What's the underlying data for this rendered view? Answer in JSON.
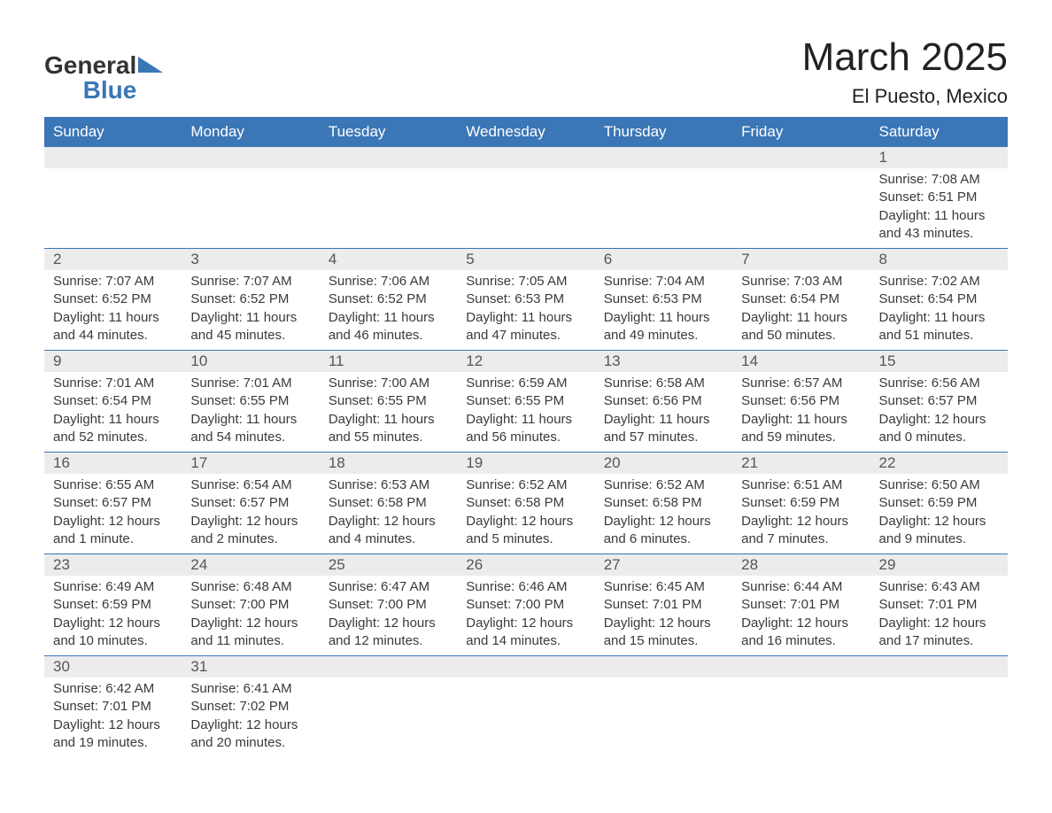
{
  "brand": {
    "line1": "General",
    "line2": "Blue"
  },
  "title": "March 2025",
  "location": "El Puesto, Mexico",
  "colors": {
    "header_bg": "#3b76b6",
    "header_text": "#ffffff",
    "daynum_bg": "#ececec",
    "body_text": "#3a3a3a",
    "border": "#3b76b6",
    "page_bg": "#ffffff"
  },
  "typography": {
    "title_fontsize": 44,
    "location_fontsize": 22,
    "header_cell_fontsize": 17,
    "daynum_fontsize": 17,
    "body_fontsize": 15
  },
  "weekdays": [
    "Sunday",
    "Monday",
    "Tuesday",
    "Wednesday",
    "Thursday",
    "Friday",
    "Saturday"
  ],
  "weeks": [
    [
      null,
      null,
      null,
      null,
      null,
      null,
      {
        "n": "1",
        "sunrise": "Sunrise: 7:08 AM",
        "sunset": "Sunset: 6:51 PM",
        "daylight": "Daylight: 11 hours and 43 minutes."
      }
    ],
    [
      {
        "n": "2",
        "sunrise": "Sunrise: 7:07 AM",
        "sunset": "Sunset: 6:52 PM",
        "daylight": "Daylight: 11 hours and 44 minutes."
      },
      {
        "n": "3",
        "sunrise": "Sunrise: 7:07 AM",
        "sunset": "Sunset: 6:52 PM",
        "daylight": "Daylight: 11 hours and 45 minutes."
      },
      {
        "n": "4",
        "sunrise": "Sunrise: 7:06 AM",
        "sunset": "Sunset: 6:52 PM",
        "daylight": "Daylight: 11 hours and 46 minutes."
      },
      {
        "n": "5",
        "sunrise": "Sunrise: 7:05 AM",
        "sunset": "Sunset: 6:53 PM",
        "daylight": "Daylight: 11 hours and 47 minutes."
      },
      {
        "n": "6",
        "sunrise": "Sunrise: 7:04 AM",
        "sunset": "Sunset: 6:53 PM",
        "daylight": "Daylight: 11 hours and 49 minutes."
      },
      {
        "n": "7",
        "sunrise": "Sunrise: 7:03 AM",
        "sunset": "Sunset: 6:54 PM",
        "daylight": "Daylight: 11 hours and 50 minutes."
      },
      {
        "n": "8",
        "sunrise": "Sunrise: 7:02 AM",
        "sunset": "Sunset: 6:54 PM",
        "daylight": "Daylight: 11 hours and 51 minutes."
      }
    ],
    [
      {
        "n": "9",
        "sunrise": "Sunrise: 7:01 AM",
        "sunset": "Sunset: 6:54 PM",
        "daylight": "Daylight: 11 hours and 52 minutes."
      },
      {
        "n": "10",
        "sunrise": "Sunrise: 7:01 AM",
        "sunset": "Sunset: 6:55 PM",
        "daylight": "Daylight: 11 hours and 54 minutes."
      },
      {
        "n": "11",
        "sunrise": "Sunrise: 7:00 AM",
        "sunset": "Sunset: 6:55 PM",
        "daylight": "Daylight: 11 hours and 55 minutes."
      },
      {
        "n": "12",
        "sunrise": "Sunrise: 6:59 AM",
        "sunset": "Sunset: 6:55 PM",
        "daylight": "Daylight: 11 hours and 56 minutes."
      },
      {
        "n": "13",
        "sunrise": "Sunrise: 6:58 AM",
        "sunset": "Sunset: 6:56 PM",
        "daylight": "Daylight: 11 hours and 57 minutes."
      },
      {
        "n": "14",
        "sunrise": "Sunrise: 6:57 AM",
        "sunset": "Sunset: 6:56 PM",
        "daylight": "Daylight: 11 hours and 59 minutes."
      },
      {
        "n": "15",
        "sunrise": "Sunrise: 6:56 AM",
        "sunset": "Sunset: 6:57 PM",
        "daylight": "Daylight: 12 hours and 0 minutes."
      }
    ],
    [
      {
        "n": "16",
        "sunrise": "Sunrise: 6:55 AM",
        "sunset": "Sunset: 6:57 PM",
        "daylight": "Daylight: 12 hours and 1 minute."
      },
      {
        "n": "17",
        "sunrise": "Sunrise: 6:54 AM",
        "sunset": "Sunset: 6:57 PM",
        "daylight": "Daylight: 12 hours and 2 minutes."
      },
      {
        "n": "18",
        "sunrise": "Sunrise: 6:53 AM",
        "sunset": "Sunset: 6:58 PM",
        "daylight": "Daylight: 12 hours and 4 minutes."
      },
      {
        "n": "19",
        "sunrise": "Sunrise: 6:52 AM",
        "sunset": "Sunset: 6:58 PM",
        "daylight": "Daylight: 12 hours and 5 minutes."
      },
      {
        "n": "20",
        "sunrise": "Sunrise: 6:52 AM",
        "sunset": "Sunset: 6:58 PM",
        "daylight": "Daylight: 12 hours and 6 minutes."
      },
      {
        "n": "21",
        "sunrise": "Sunrise: 6:51 AM",
        "sunset": "Sunset: 6:59 PM",
        "daylight": "Daylight: 12 hours and 7 minutes."
      },
      {
        "n": "22",
        "sunrise": "Sunrise: 6:50 AM",
        "sunset": "Sunset: 6:59 PM",
        "daylight": "Daylight: 12 hours and 9 minutes."
      }
    ],
    [
      {
        "n": "23",
        "sunrise": "Sunrise: 6:49 AM",
        "sunset": "Sunset: 6:59 PM",
        "daylight": "Daylight: 12 hours and 10 minutes."
      },
      {
        "n": "24",
        "sunrise": "Sunrise: 6:48 AM",
        "sunset": "Sunset: 7:00 PM",
        "daylight": "Daylight: 12 hours and 11 minutes."
      },
      {
        "n": "25",
        "sunrise": "Sunrise: 6:47 AM",
        "sunset": "Sunset: 7:00 PM",
        "daylight": "Daylight: 12 hours and 12 minutes."
      },
      {
        "n": "26",
        "sunrise": "Sunrise: 6:46 AM",
        "sunset": "Sunset: 7:00 PM",
        "daylight": "Daylight: 12 hours and 14 minutes."
      },
      {
        "n": "27",
        "sunrise": "Sunrise: 6:45 AM",
        "sunset": "Sunset: 7:01 PM",
        "daylight": "Daylight: 12 hours and 15 minutes."
      },
      {
        "n": "28",
        "sunrise": "Sunrise: 6:44 AM",
        "sunset": "Sunset: 7:01 PM",
        "daylight": "Daylight: 12 hours and 16 minutes."
      },
      {
        "n": "29",
        "sunrise": "Sunrise: 6:43 AM",
        "sunset": "Sunset: 7:01 PM",
        "daylight": "Daylight: 12 hours and 17 minutes."
      }
    ],
    [
      {
        "n": "30",
        "sunrise": "Sunrise: 6:42 AM",
        "sunset": "Sunset: 7:01 PM",
        "daylight": "Daylight: 12 hours and 19 minutes."
      },
      {
        "n": "31",
        "sunrise": "Sunrise: 6:41 AM",
        "sunset": "Sunset: 7:02 PM",
        "daylight": "Daylight: 12 hours and 20 minutes."
      },
      null,
      null,
      null,
      null,
      null
    ]
  ]
}
